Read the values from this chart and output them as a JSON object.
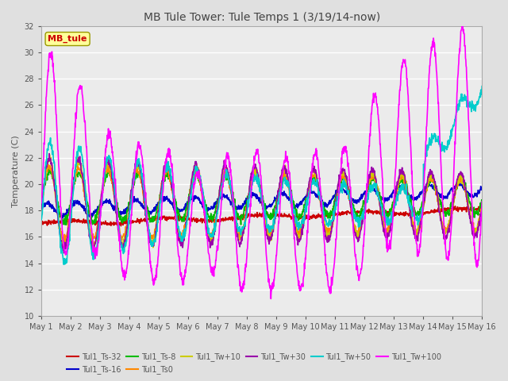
{
  "title": "MB Tule Tower: Tule Temps 1 (3/19/14-now)",
  "ylabel": "Temperature (C)",
  "xlim": [
    0,
    15
  ],
  "ylim": [
    10,
    32
  ],
  "yticks": [
    10,
    12,
    14,
    16,
    18,
    20,
    22,
    24,
    26,
    28,
    30,
    32
  ],
  "xtick_labels": [
    "May 1",
    "May 2",
    "May 3",
    "May 4",
    "May 5",
    "May 6",
    "May 7",
    "May 8",
    "May 9",
    "May 10",
    "May 11",
    "May 12",
    "May 13",
    "May 14",
    "May 15",
    "May 16"
  ],
  "background_color": "#e0e0e0",
  "plot_bg_color": "#ebebeb",
  "grid_color": "#ffffff",
  "series": {
    "Tul1_Ts-32": {
      "color": "#cc0000",
      "lw": 1.2
    },
    "Tul1_Ts-16": {
      "color": "#0000cc",
      "lw": 1.2
    },
    "Tul1_Ts-8": {
      "color": "#00bb00",
      "lw": 1.2
    },
    "Tul1_Ts0": {
      "color": "#ff8800",
      "lw": 1.2
    },
    "Tul1_Tw+10": {
      "color": "#cccc00",
      "lw": 1.2
    },
    "Tul1_Tw+30": {
      "color": "#9900aa",
      "lw": 1.2
    },
    "Tul1_Tw+50": {
      "color": "#00cccc",
      "lw": 1.2
    },
    "Tul1_Tw+100": {
      "color": "#ff00ff",
      "lw": 1.2
    }
  },
  "legend_box_color": "#ffff99",
  "legend_box_edge": "#999900",
  "legend_text": "MB_tule",
  "legend_text_color": "#cc0000"
}
